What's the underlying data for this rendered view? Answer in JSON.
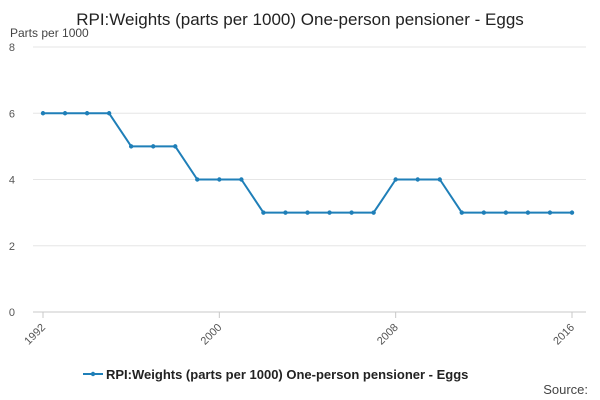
{
  "title": "RPI:Weights (parts per 1000) One-person pensioner - Eggs",
  "unit_label": "Parts per 1000",
  "source_label": "Source:",
  "colors": {
    "series": "#1f7fb8",
    "grid": "#e6e6e6",
    "axis": "#c8c8c8"
  },
  "chart_data": {
    "type": "line",
    "title": "RPI:Weights (parts per 1000) One-person pensioner - Eggs",
    "xlabel": "",
    "ylabel": "Parts per 1000",
    "xlim": [
      1992,
      2016
    ],
    "ylim": [
      0,
      8
    ],
    "yticks": [
      0,
      2,
      4,
      6,
      8
    ],
    "xticks": [
      1992,
      2000,
      2008,
      2016
    ],
    "grid": true,
    "legend": "bottom",
    "series": [
      {
        "name": "RPI:Weights (parts per 1000) One-person pensioner - Eggs",
        "x": [
          1992,
          1993,
          1994,
          1995,
          1996,
          1997,
          1998,
          1999,
          2000,
          2001,
          2002,
          2003,
          2004,
          2005,
          2006,
          2007,
          2008,
          2009,
          2010,
          2011,
          2012,
          2013,
          2014,
          2015,
          2016
        ],
        "values": [
          6,
          6,
          6,
          6,
          5,
          5,
          5,
          4,
          4,
          4,
          3,
          3,
          3,
          3,
          3,
          3,
          4,
          4,
          4,
          3,
          3,
          3,
          3,
          3,
          3
        ]
      }
    ]
  }
}
